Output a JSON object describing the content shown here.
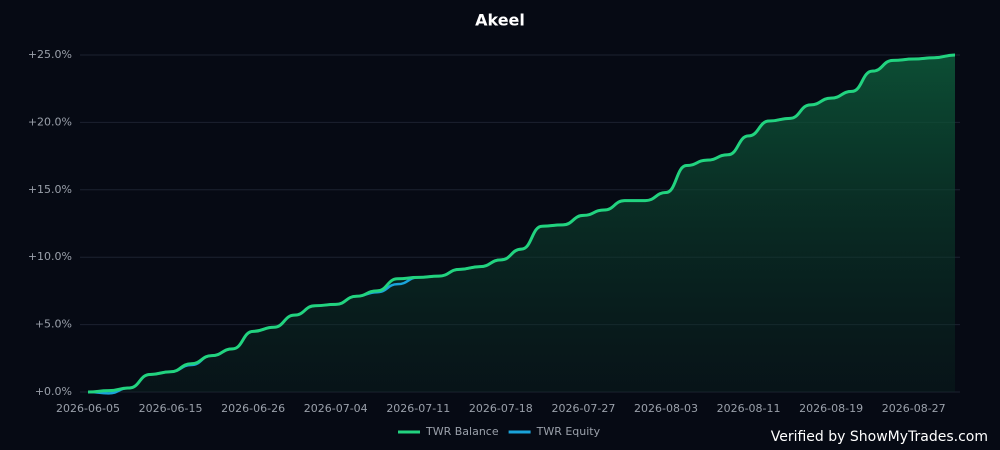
{
  "chart_data": {
    "type": "line",
    "title": "Akeel",
    "categories": [
      "2026-06-05",
      null,
      null,
      null,
      "2026-06-15",
      null,
      null,
      null,
      "2026-06-26",
      null,
      null,
      null,
      "2026-07-04",
      null,
      null,
      null,
      "2026-07-11",
      null,
      null,
      null,
      "2026-07-18",
      null,
      null,
      null,
      "2026-07-27",
      null,
      null,
      null,
      "2026-08-03",
      null,
      null,
      null,
      "2026-08-11",
      null,
      null,
      null,
      "2026-08-19",
      null,
      null,
      null,
      "2026-08-27",
      null,
      null
    ],
    "series": [
      {
        "name": "TWR Equity",
        "color": "#1aa3d9",
        "values": [
          0,
          -0.1,
          0.3,
          1.3,
          1.5,
          2.0,
          2.7,
          3.2,
          4.5,
          4.8,
          5.7,
          6.4,
          6.5,
          7.1,
          7.4,
          8.0,
          8.5,
          8.6,
          9.1,
          9.3,
          9.8,
          10.6,
          12.3,
          12.4,
          13.1,
          13.5,
          14.2,
          14.2,
          14.8,
          16.8,
          17.2,
          17.6,
          19.0,
          20.1,
          20.3,
          21.3,
          21.8,
          22.3,
          23.8,
          24.6,
          24.7,
          24.8,
          25.0
        ]
      },
      {
        "name": "TWR Balance",
        "color": "#22d37f",
        "values": [
          0,
          0.1,
          0.3,
          1.3,
          1.5,
          2.1,
          2.7,
          3.2,
          4.5,
          4.8,
          5.7,
          6.4,
          6.5,
          7.1,
          7.5,
          8.4,
          8.5,
          8.6,
          9.1,
          9.3,
          9.8,
          10.6,
          12.3,
          12.4,
          13.1,
          13.5,
          14.2,
          14.2,
          14.8,
          16.8,
          17.2,
          17.6,
          19.0,
          20.1,
          20.3,
          21.3,
          21.8,
          22.3,
          23.8,
          24.6,
          24.7,
          24.8,
          25.0
        ]
      }
    ],
    "ylim": [
      0,
      25
    ],
    "yticks": [
      {
        "value": 0,
        "label": "+0.0%"
      },
      {
        "value": 5,
        "label": "+5.0%"
      },
      {
        "value": 10,
        "label": "+10.0%"
      },
      {
        "value": 15,
        "label": "+15.0%"
      },
      {
        "value": 20,
        "label": "+20.0%"
      },
      {
        "value": 25,
        "label": "+25.0%"
      }
    ],
    "grid": true,
    "legend": "bottom",
    "watermark": "Verified by ShowMyTrades.com"
  }
}
